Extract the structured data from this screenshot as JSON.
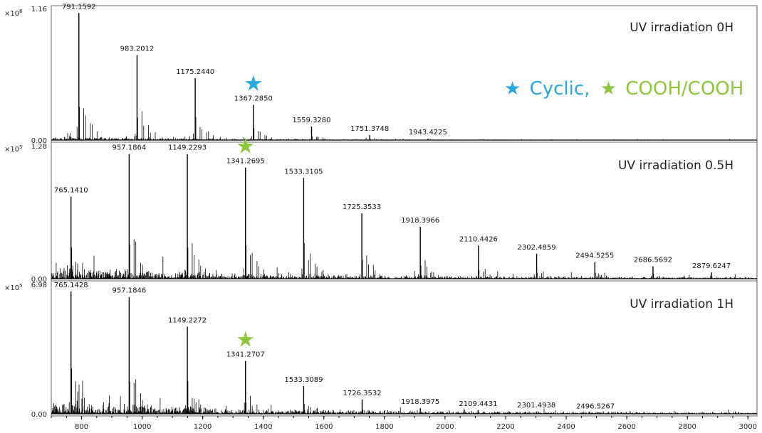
{
  "chart_data": {
    "type": "bar",
    "xlim": [
      700,
      3030
    ],
    "x_ticks": [
      800,
      1000,
      1200,
      1400,
      1600,
      1800,
      2000,
      2200,
      2400,
      2600,
      2800,
      3000
    ],
    "legend": {
      "items": [
        {
          "symbol": "★",
          "label": "Cyclic,",
          "color": "#29a8e0"
        },
        {
          "symbol": "★",
          "label": "COOH/COOH",
          "color": "#8cc63f"
        }
      ],
      "placement": "top-right"
    },
    "panels": [
      {
        "title": "UV irradiation 0H",
        "exponent_base": "×10",
        "exponent": "6",
        "ymax_label": "1.16",
        "ymin_label": "0.00",
        "ylim": [
          0,
          1.16
        ],
        "peaks": [
          {
            "mz": 791.1592,
            "label": "791.1592",
            "intensity": 1.12
          },
          {
            "mz": 983.2012,
            "label": "983.2012",
            "intensity": 0.75
          },
          {
            "mz": 1175.244,
            "label": "1175.2440",
            "intensity": 0.545
          },
          {
            "mz": 1367.285,
            "label": "1367.2850",
            "intensity": 0.31,
            "marker": "cyclic"
          },
          {
            "mz": 1559.328,
            "label": "1559.3280",
            "intensity": 0.12
          },
          {
            "mz": 1751.3748,
            "label": "1751.3748",
            "intensity": 0.045
          },
          {
            "mz": 1943.4225,
            "label": "1943.4225",
            "intensity": 0.012
          }
        ]
      },
      {
        "title": "UV irradiation 0.5H",
        "exponent_base": "×10",
        "exponent": "5",
        "ymax_label": "1.28",
        "ymin_label": "0.00",
        "ylim": [
          0,
          1.28
        ],
        "peaks": [
          {
            "mz": 765.141,
            "label": "765.1410",
            "intensity": 0.79
          },
          {
            "mz": 957.1864,
            "label": "957.1864",
            "intensity": 1.2
          },
          {
            "mz": 1149.2293,
            "label": "1149.2293",
            "intensity": 1.2
          },
          {
            "mz": 1341.2695,
            "label": "1341.2695",
            "intensity": 1.07,
            "marker": "cooh"
          },
          {
            "mz": 1533.3105,
            "label": "1533.3105",
            "intensity": 0.97
          },
          {
            "mz": 1725.3533,
            "label": "1725.3533",
            "intensity": 0.63
          },
          {
            "mz": 1918.3966,
            "label": "1918.3966",
            "intensity": 0.5
          },
          {
            "mz": 2110.4426,
            "label": "2110.4426",
            "intensity": 0.32
          },
          {
            "mz": 2302.4859,
            "label": "2302.4859",
            "intensity": 0.24
          },
          {
            "mz": 2494.5255,
            "label": "2494.5255",
            "intensity": 0.16
          },
          {
            "mz": 2686.5692,
            "label": "2686.5692",
            "intensity": 0.12
          },
          {
            "mz": 2879.6247,
            "label": "2879.6247",
            "intensity": 0.06
          }
        ]
      },
      {
        "title": "UV irradiation 1H",
        "exponent_base": "×10",
        "exponent": "5",
        "ymax_label": "6.98",
        "ymin_label": "0.00",
        "ylim": [
          0,
          6.98
        ],
        "peaks": [
          {
            "mz": 765.1428,
            "label": "765.1428",
            "intensity": 6.6
          },
          {
            "mz": 957.1846,
            "label": "957.1846",
            "intensity": 6.3
          },
          {
            "mz": 1149.2272,
            "label": "1149.2272",
            "intensity": 4.7
          },
          {
            "mz": 1341.2707,
            "label": "1341.2707",
            "intensity": 2.85,
            "marker": "cooh"
          },
          {
            "mz": 1533.3089,
            "label": "1533.3089",
            "intensity": 1.5
          },
          {
            "mz": 1726.3532,
            "label": "1726.3532",
            "intensity": 0.77
          },
          {
            "mz": 1918.3975,
            "label": "1918.3975",
            "intensity": 0.3
          },
          {
            "mz": 2109.4431,
            "label": "2109.4431",
            "intensity": 0.2
          },
          {
            "mz": 2301.4938,
            "label": "2301.4938",
            "intensity": 0.12
          },
          {
            "mz": 2496.5267,
            "label": "2496.5267",
            "intensity": 0.05
          }
        ]
      }
    ]
  }
}
